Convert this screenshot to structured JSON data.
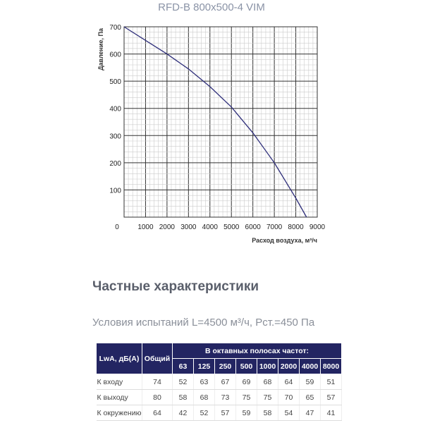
{
  "chart_data": {
    "type": "line",
    "title": "RFD-B 800x500-4 VIM",
    "xlabel": "Расход воздуха, м³/ч",
    "ylabel": "Давление, Па",
    "xlim": [
      0,
      9000
    ],
    "ylim": [
      0,
      700
    ],
    "xticks": [
      "0",
      "1000",
      "2000",
      "3000",
      "4000",
      "5000",
      "6000",
      "7000",
      "8000",
      "9000"
    ],
    "yticks": [
      "100",
      "200",
      "300",
      "400",
      "500",
      "600",
      "700"
    ],
    "grid": true,
    "line_color": "#2e2e7a",
    "x": [
      0,
      1000,
      2000,
      3000,
      4000,
      5000,
      6000,
      7000,
      8000,
      8500
    ],
    "y": [
      700,
      650,
      600,
      545,
      480,
      405,
      310,
      200,
      70,
      0
    ]
  },
  "section_title": "Частные характеристики",
  "conditions": "Условия испытаний L=4500 м³/ч, Рст.=450 Па",
  "table": {
    "header_label": "LwA, дБ(А)",
    "header_total": "Общий",
    "header_bands": "В октавных полосах частот:",
    "bands": [
      "63",
      "125",
      "250",
      "500",
      "1000",
      "2000",
      "4000",
      "8000"
    ],
    "rows": [
      {
        "label": "К входу",
        "total": "74",
        "values": [
          "52",
          "63",
          "67",
          "69",
          "68",
          "64",
          "59",
          "51"
        ]
      },
      {
        "label": "К выходу",
        "total": "80",
        "values": [
          "58",
          "68",
          "73",
          "75",
          "75",
          "70",
          "65",
          "57"
        ]
      },
      {
        "label": "К окружению",
        "total": "64",
        "values": [
          "42",
          "52",
          "57",
          "59",
          "58",
          "54",
          "47",
          "41"
        ]
      }
    ]
  }
}
